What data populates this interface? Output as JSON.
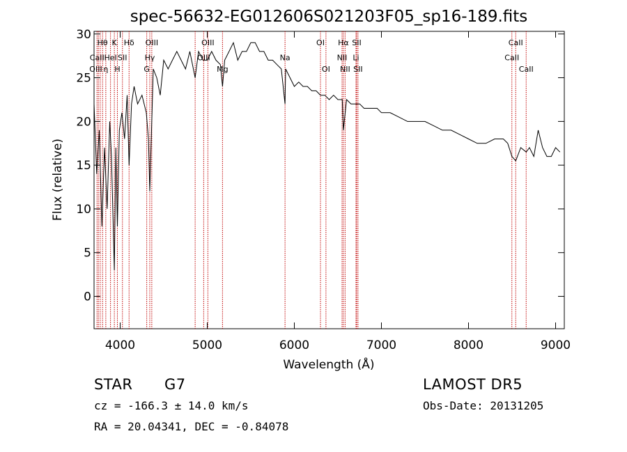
{
  "chart_data": {
    "type": "line",
    "title": "spec-56632-EG012606S021203F05_sp16-189.fits",
    "xlabel": "Wavelength (Å)",
    "ylabel": "Flux (relative)",
    "xlim": [
      3700,
      9100
    ],
    "ylim": [
      -3.7,
      30.3
    ],
    "xticks": [
      4000,
      5000,
      6000,
      7000,
      8000,
      9000
    ],
    "yticks": [
      0,
      5,
      10,
      15,
      20,
      25,
      30
    ],
    "x_tick_labels": [
      "4000",
      "5000",
      "6000",
      "7000",
      "8000",
      "9000"
    ],
    "y_tick_labels": [
      "0",
      "5",
      "10",
      "15",
      "20",
      "25",
      "30"
    ],
    "grid": false,
    "series": [
      {
        "x": [
          3700,
          3730,
          3760,
          3790,
          3820,
          3850,
          3880,
          3900,
          3933,
          3950,
          3968,
          3990,
          4020,
          4050,
          4080,
          4102,
          4130,
          4160,
          4200,
          4250,
          4300,
          4325,
          4340,
          4380,
          4420,
          4460,
          4500,
          4550,
          4600,
          4650,
          4700,
          4750,
          4800,
          4861,
          4900,
          4950,
          5000,
          5050,
          5100,
          5150,
          5175,
          5200,
          5250,
          5300,
          5350,
          5400,
          5450,
          5500,
          5550,
          5600,
          5650,
          5700,
          5750,
          5800,
          5850,
          5893,
          5900,
          5950,
          6000,
          6050,
          6100,
          6150,
          6200,
          6250,
          6300,
          6350,
          6400,
          6450,
          6500,
          6550,
          6563,
          6600,
          6650,
          6700,
          6750,
          6800,
          6850,
          6900,
          6950,
          7000,
          7100,
          7200,
          7300,
          7400,
          7500,
          7600,
          7700,
          7800,
          7900,
          8000,
          8100,
          8200,
          8300,
          8400,
          8450,
          8498,
          8542,
          8600,
          8662,
          8700,
          8750,
          8800,
          8850,
          8900,
          8950,
          9000,
          9050
        ],
        "y": [
          22,
          14,
          19,
          8,
          17,
          10,
          20,
          16,
          3,
          17,
          8,
          19,
          21,
          18,
          23,
          15,
          22,
          24,
          22,
          23,
          21,
          18,
          12,
          26,
          25,
          23,
          27,
          26,
          27,
          28,
          27,
          26,
          28,
          25,
          28,
          27,
          27,
          28,
          27,
          26.5,
          24,
          27,
          28,
          29,
          27,
          28,
          28,
          29,
          29,
          28,
          28,
          27,
          27,
          26.5,
          26,
          22,
          26,
          25,
          24,
          24.5,
          24,
          24,
          23.5,
          23.5,
          23,
          23,
          22.5,
          23,
          22.5,
          22.5,
          19,
          22.5,
          22,
          22,
          22,
          21.5,
          21.5,
          21.5,
          21.5,
          21,
          21,
          20.5,
          20,
          20,
          20,
          19.5,
          19,
          19,
          18.5,
          18,
          17.5,
          17.5,
          18,
          18,
          17.5,
          16,
          15.5,
          17,
          16.5,
          17,
          16,
          19,
          17,
          16,
          16,
          17,
          16.5
        ]
      }
    ],
    "line_markers": {
      "x": [
        3734,
        3750,
        3771,
        3798,
        3835,
        3889,
        3933,
        3968,
        4026,
        4102,
        4305,
        4340,
        4363,
        4861,
        4959,
        5007,
        5175,
        5893,
        6300,
        6363,
        6548,
        6563,
        6583,
        6708,
        6716,
        6731,
        8498,
        8542,
        8662
      ],
      "labels": [
        {
          "text": "Hθ",
          "x": 3797,
          "y": 28.7
        },
        {
          "text": "K",
          "x": 3933,
          "y": 28.7
        },
        {
          "text": "Hδ",
          "x": 4102,
          "y": 28.7
        },
        {
          "text": "OIII",
          "x": 4363,
          "y": 28.7
        },
        {
          "text": "OIII",
          "x": 5007,
          "y": 28.7
        },
        {
          "text": "OI",
          "x": 6300,
          "y": 28.7
        },
        {
          "text": "Hα",
          "x": 6563,
          "y": 28.7
        },
        {
          "text": "SII",
          "x": 6716,
          "y": 28.7
        },
        {
          "text": "CaII",
          "x": 8542,
          "y": 28.7
        },
        {
          "text": "CaII",
          "x": 3734,
          "y": 27.0
        },
        {
          "text": "HeI",
          "x": 3889,
          "y": 27.0
        },
        {
          "text": "SII",
          "x": 4026,
          "y": 27.0
        },
        {
          "text": "Hγ",
          "x": 4340,
          "y": 27.0
        },
        {
          "text": "OIII",
          "x": 4959,
          "y": 27.0
        },
        {
          "text": "Na",
          "x": 5893,
          "y": 27.0
        },
        {
          "text": "NII",
          "x": 6548,
          "y": 27.0
        },
        {
          "text": "Li",
          "x": 6708,
          "y": 27.0
        },
        {
          "text": "CaII",
          "x": 8498,
          "y": 27.0
        },
        {
          "text": "OIII",
          "x": 3720,
          "y": 25.7
        },
        {
          "text": "η",
          "x": 3835,
          "y": 25.7
        },
        {
          "text": "H",
          "x": 3968,
          "y": 25.7
        },
        {
          "text": "G",
          "x": 4305,
          "y": 25.7
        },
        {
          "text": "Mg",
          "x": 5175,
          "y": 25.7
        },
        {
          "text": "OI",
          "x": 6363,
          "y": 25.7
        },
        {
          "text": "NII",
          "x": 6583,
          "y": 25.7
        },
        {
          "text": "SII",
          "x": 6731,
          "y": 25.7
        },
        {
          "text": "CaII",
          "x": 8662,
          "y": 25.7
        }
      ]
    }
  },
  "info": {
    "object_class": "STAR",
    "subclass": "G7",
    "survey": "LAMOST DR5",
    "velocity": "cz = -166.3 ± 14.0 km/s",
    "obs_date": "Obs-Date: 20131205",
    "coords": "RA =  20.04341, DEC =  -0.84078"
  },
  "colors": {
    "marker": "#c00000",
    "spectrum": "#000000",
    "axes": "#000000"
  }
}
